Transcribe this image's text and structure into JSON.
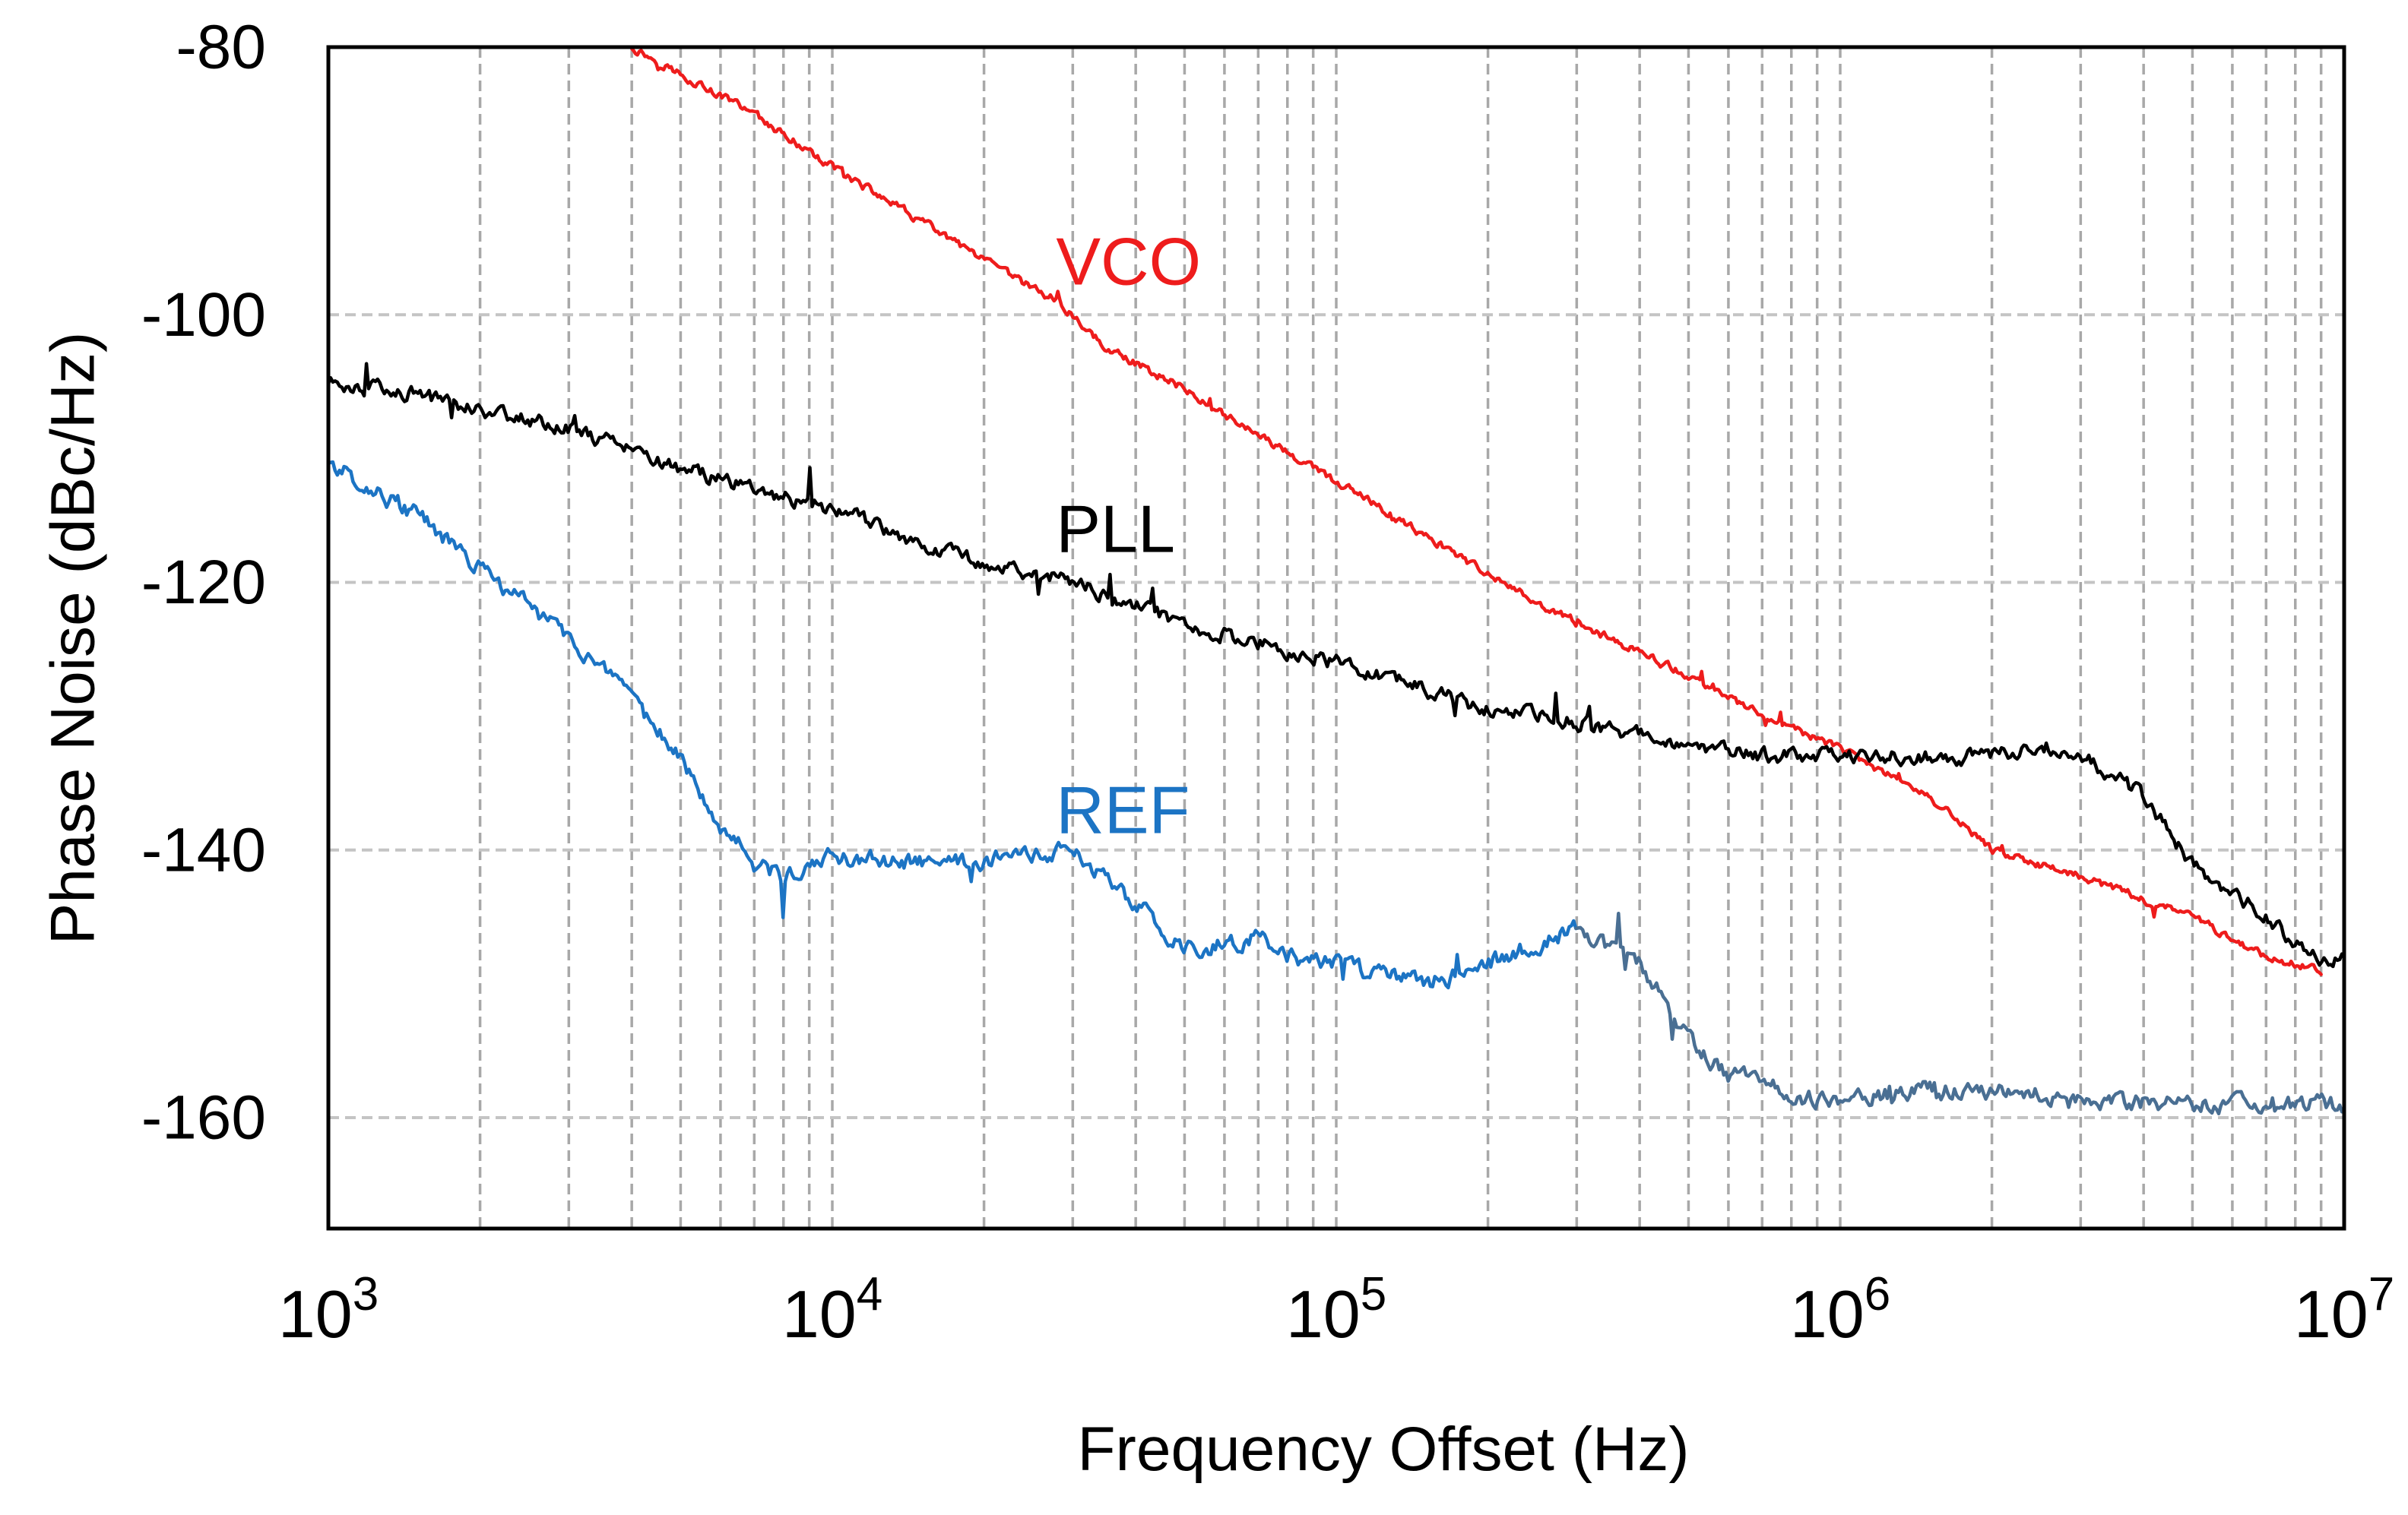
{
  "chart_data": {
    "type": "line",
    "title": "",
    "xlabel": "Frequency Offset (Hz)",
    "ylabel": "Phase Noise (dBc/Hz)",
    "xscale": "log",
    "xlim": [
      1000,
      10000000
    ],
    "ylim": [
      -168,
      -80
    ],
    "grid": true,
    "legend": "inline labels",
    "yticks": [
      -80,
      -100,
      -120,
      -140,
      -160
    ],
    "ytick_labels": [
      "-80",
      "-100",
      "-120",
      "-140",
      "-160"
    ],
    "xticks": [
      {
        "value": 1000,
        "base": "10",
        "exp": "3"
      },
      {
        "value": 10000,
        "base": "10",
        "exp": "4"
      },
      {
        "value": 100000,
        "base": "10",
        "exp": "5"
      },
      {
        "value": 1000000,
        "base": "10",
        "exp": "6"
      },
      {
        "value": 10000000,
        "base": "10",
        "exp": "7"
      }
    ],
    "series": [
      {
        "name": "VCO",
        "color": "#ee1c1c",
        "label_at": [
          30000,
          -96
        ],
        "x": [
          4000,
          5000,
          7000,
          10000,
          15000,
          20000,
          28000,
          35000,
          50000,
          70000,
          100000,
          150000,
          200000,
          300000,
          500000,
          700000,
          1000000,
          1500000,
          2000000,
          3000000,
          5000000,
          7000000,
          9000000
        ],
        "y": [
          -80,
          -82,
          -85,
          -89,
          -93,
          -96,
          -99,
          -102.5,
          -105.5,
          -109,
          -112.5,
          -116.5,
          -119.5,
          -123,
          -127,
          -130,
          -132.5,
          -136,
          -140,
          -142,
          -145,
          -148,
          -149
        ]
      },
      {
        "name": "PLL",
        "color": "#000000",
        "label_at": [
          30000,
          -116
        ],
        "x": [
          1000,
          1500,
          2000,
          3000,
          4000,
          5000,
          7000,
          10000,
          15000,
          20000,
          30000,
          50000,
          70000,
          100000,
          150000,
          200000,
          300000,
          500000,
          700000,
          1000000,
          1500000,
          2000000,
          2500000,
          3000000,
          4000000,
          5000000,
          7000000,
          9000000,
          10000000
        ],
        "y": [
          -105,
          -106,
          -107,
          -108.5,
          -110,
          -111.5,
          -113,
          -114.5,
          -117,
          -118.5,
          -120,
          -123,
          -124.5,
          -126,
          -128,
          -129.5,
          -130.5,
          -132,
          -133,
          -133,
          -133,
          -133,
          -132,
          -133,
          -136,
          -141,
          -145,
          -148.5,
          -148
        ]
      },
      {
        "name": "REF",
        "color": "#1c74c4",
        "end_color": "#4a6f93",
        "label_at": [
          30000,
          -137
        ],
        "x": [
          1000,
          1500,
          2000,
          3000,
          4000,
          5000,
          6000,
          7000,
          8000,
          10000,
          15000,
          20000,
          25000,
          30000,
          40000,
          50000,
          60000,
          70000,
          80000,
          100000,
          150000,
          200000,
          250000,
          300000,
          400000,
          500000,
          600000,
          700000,
          800000,
          1000000,
          1500000,
          2000000,
          3000000,
          5000000,
          7000000,
          10000000
        ],
        "y": [
          -111,
          -115,
          -119,
          -124,
          -129,
          -133,
          -138,
          -141,
          -142,
          -140.5,
          -141,
          -141,
          -140.5,
          -140,
          -144,
          -147.5,
          -147,
          -146.5,
          -148,
          -148.5,
          -150,
          -148.5,
          -147,
          -146,
          -148.5,
          -154,
          -157,
          -157,
          -158.5,
          -158.5,
          -158,
          -158,
          -158.5,
          -159,
          -159,
          -159
        ]
      }
    ]
  }
}
